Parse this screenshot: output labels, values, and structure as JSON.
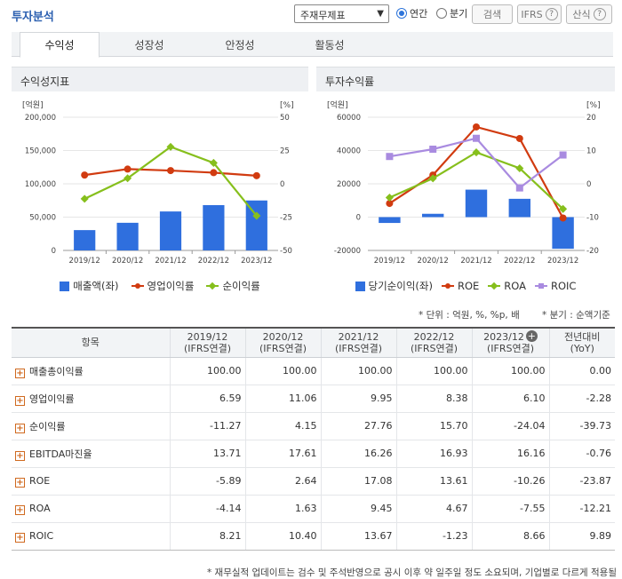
{
  "header": {
    "title": "투자분석",
    "select_value": "주재무제표",
    "radio_annual": "연간",
    "radio_quarter": "분기",
    "search_label": "검색",
    "ifrs_label": "IFRS",
    "formula_label": "산식",
    "help_glyph": "?"
  },
  "tabs": [
    "수익성",
    "성장성",
    "안정성",
    "활동성"
  ],
  "left_panel": {
    "title": "수익성지표",
    "legend": [
      "매출액(좌)",
      "영업이익률",
      "순이익률"
    ]
  },
  "right_panel": {
    "title": "투자수익률",
    "legend": [
      "당기순이익(좌)",
      "ROE",
      "ROA",
      "ROIC"
    ]
  },
  "chart_data": [
    {
      "type": "bar",
      "title": "수익성지표",
      "categories": [
        "2019/12",
        "2020/12",
        "2021/12",
        "2022/12",
        "2023/12"
      ],
      "left_unit": "[억원]",
      "right_unit": "[%]",
      "left_ticks": [
        "200,000",
        "150,000",
        "100,000",
        "50,000",
        "0"
      ],
      "right_ticks": [
        "50",
        "25",
        "0",
        "-25",
        "-50"
      ],
      "ylim_left": [
        0,
        200000
      ],
      "ylim_right": [
        -50,
        50
      ],
      "series": [
        {
          "name": "매출액(좌)",
          "type": "bar",
          "axis": "left",
          "color": "#2f6fde",
          "values": [
            30500,
            41500,
            58500,
            68000,
            75000
          ]
        },
        {
          "name": "영업이익률",
          "type": "line",
          "axis": "right",
          "color": "#d13b10",
          "marker": "circle",
          "values": [
            6.59,
            11.06,
            9.95,
            8.38,
            6.1
          ]
        },
        {
          "name": "순이익률",
          "type": "line",
          "axis": "right",
          "color": "#86bf1c",
          "marker": "diamond",
          "values": [
            -11.27,
            4.15,
            27.76,
            15.7,
            -24.04
          ]
        }
      ]
    },
    {
      "type": "bar",
      "title": "투자수익률",
      "categories": [
        "2019/12",
        "2020/12",
        "2021/12",
        "2022/12",
        "2023/12"
      ],
      "left_unit": "[억원]",
      "right_unit": "[%]",
      "left_ticks": [
        "60000",
        "40000",
        "20000",
        "0",
        "-20000"
      ],
      "right_ticks": [
        "20",
        "10",
        "0",
        "-10",
        "-20"
      ],
      "ylim_left": [
        -20000,
        60000
      ],
      "ylim_right": [
        -20,
        20
      ],
      "series": [
        {
          "name": "당기순이익(좌)",
          "type": "bar",
          "axis": "left",
          "color": "#2f6fde",
          "values": [
            -3500,
            2000,
            16500,
            11000,
            -19000
          ]
        },
        {
          "name": "ROE",
          "type": "line",
          "axis": "right",
          "color": "#d13b10",
          "marker": "circle",
          "values": [
            -5.89,
            2.64,
            17.08,
            13.61,
            -10.26
          ]
        },
        {
          "name": "ROA",
          "type": "line",
          "axis": "right",
          "color": "#86bf1c",
          "marker": "diamond",
          "values": [
            -4.14,
            1.63,
            9.45,
            4.67,
            -7.55
          ]
        },
        {
          "name": "ROIC",
          "type": "line",
          "axis": "right",
          "color": "#a98be0",
          "marker": "square",
          "values": [
            8.21,
            10.4,
            13.67,
            -1.23,
            8.66
          ]
        }
      ]
    }
  ],
  "units_note": "* 단위 : 억원, %, %p, 배",
  "quarter_note": "* 분기 : 순액기준",
  "table": {
    "headers": [
      {
        "line1": "항목",
        "line2": ""
      },
      {
        "line1": "2019/12",
        "line2": "(IFRS연결)"
      },
      {
        "line1": "2020/12",
        "line2": "(IFRS연결)"
      },
      {
        "line1": "2021/12",
        "line2": "(IFRS연결)"
      },
      {
        "line1": "2022/12",
        "line2": "(IFRS연결)"
      },
      {
        "line1": "2023/12",
        "line2": "(IFRS연결)"
      },
      {
        "line1": "전년대비",
        "line2": "(YoY)"
      }
    ],
    "add_glyph": "+",
    "expand_glyph": "+",
    "rows": [
      {
        "label": "매출총이익률",
        "values": [
          "100.00",
          "100.00",
          "100.00",
          "100.00",
          "100.00",
          "0.00"
        ]
      },
      {
        "label": "영업이익률",
        "values": [
          "6.59",
          "11.06",
          "9.95",
          "8.38",
          "6.10",
          "-2.28"
        ]
      },
      {
        "label": "순이익률",
        "values": [
          "-11.27",
          "4.15",
          "27.76",
          "15.70",
          "-24.04",
          "-39.73"
        ]
      },
      {
        "label": "EBITDA마진율",
        "values": [
          "13.71",
          "17.61",
          "16.26",
          "16.93",
          "16.16",
          "-0.76"
        ]
      },
      {
        "label": "ROE",
        "values": [
          "-5.89",
          "2.64",
          "17.08",
          "13.61",
          "-10.26",
          "-23.87"
        ]
      },
      {
        "label": "ROA",
        "values": [
          "-4.14",
          "1.63",
          "9.45",
          "4.67",
          "-7.55",
          "-12.21"
        ]
      },
      {
        "label": "ROIC",
        "values": [
          "8.21",
          "10.40",
          "13.67",
          "-1.23",
          "8.66",
          "9.89"
        ]
      }
    ]
  },
  "footnote": "* 재무실적 업데이트는 검수 및 주석반영으로 공시 이후 약 일주일 정도 소요되며, 기업별로 다르게 적용될"
}
